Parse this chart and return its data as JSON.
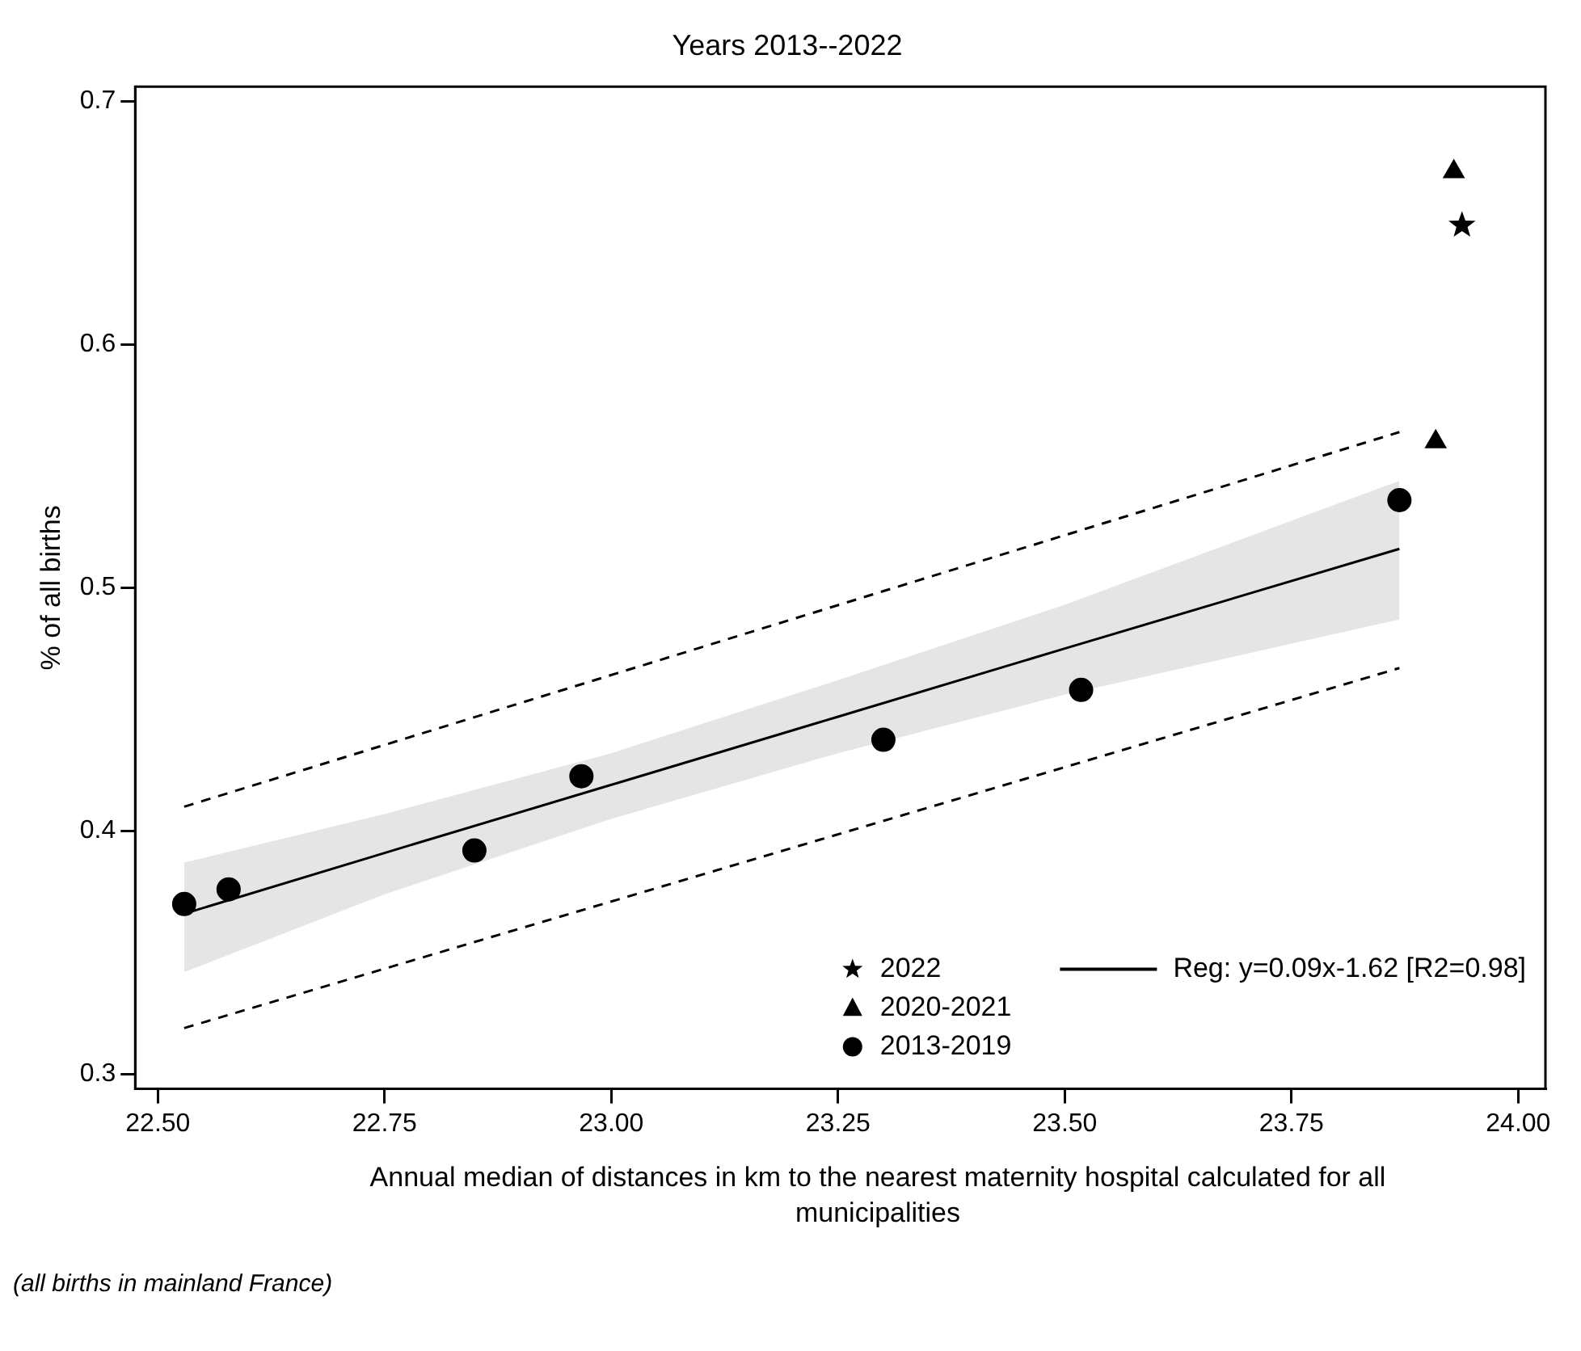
{
  "chart_data": {
    "type": "scatter",
    "title": "Years 2013--2022",
    "xlabel": "Annual median of distances in km to the nearest maternity hospital calculated for all municipalities",
    "ylabel": "% of all births",
    "xlim": [
      22.475,
      24.03
    ],
    "xticks": [
      {
        "value": 22.5,
        "label": "22.50"
      },
      {
        "value": 22.75,
        "label": "22.75"
      },
      {
        "value": 23,
        "label": "23.00"
      },
      {
        "value": 23.25,
        "label": "23.25"
      },
      {
        "value": 23.5,
        "label": "23.50"
      },
      {
        "value": 23.75,
        "label": "23.75"
      },
      {
        "value": 24,
        "label": "24.00"
      }
    ],
    "ylim": [
      0.294,
      0.706
    ],
    "yticks": [
      0.3,
      0.4,
      0.5,
      0.6,
      0.7
    ],
    "grid": false,
    "legend": "bottom right",
    "series": [
      {
        "name": "2022",
        "type": "scatter",
        "marker": "star",
        "color": "#000000",
        "x": [
          23.938
        ],
        "values": [
          0.649
        ]
      },
      {
        "name": "2020-2021",
        "type": "scatter",
        "marker": "triangle",
        "color": "#000000",
        "x": [
          23.909,
          23.929
        ],
        "values": [
          0.56,
          0.671
        ]
      },
      {
        "name": "2013-2019",
        "type": "scatter",
        "marker": "circle",
        "color": "#000000",
        "x": [
          22.529,
          22.578,
          22.849,
          22.967,
          23.3,
          23.518,
          23.869
        ],
        "values": [
          0.37,
          0.376,
          0.392,
          0.4225,
          0.4375,
          0.458,
          0.536
        ]
      },
      {
        "name": "Reg: y=0.09x-1.62 [R2=0.98]",
        "type": "line",
        "marker": "none",
        "line_style": "solid",
        "color": "#000000",
        "x": [
          22.529,
          22.75,
          23.0,
          23.25,
          23.5,
          23.869
        ],
        "values": [
          0.366,
          0.391,
          0.419,
          0.447,
          0.475,
          0.516
        ],
        "lower": [
          0.342,
          0.374,
          0.405,
          0.432,
          0.456,
          0.487
        ],
        "upper": [
          0.387,
          0.407,
          0.432,
          0.462,
          0.493,
          0.544
        ]
      },
      {
        "type": "line",
        "marker": "none",
        "line_style": "dashed",
        "color": "#000000",
        "x": [
          22.529,
          23.869
        ],
        "values": [
          0.41,
          0.564
        ]
      },
      {
        "type": "line",
        "marker": "none",
        "line_style": "dashed",
        "color": "#000000",
        "x": [
          22.529,
          23.869
        ],
        "values": [
          0.319,
          0.467
        ]
      }
    ],
    "annotations": [
      "(all births in mainland France)"
    ]
  }
}
